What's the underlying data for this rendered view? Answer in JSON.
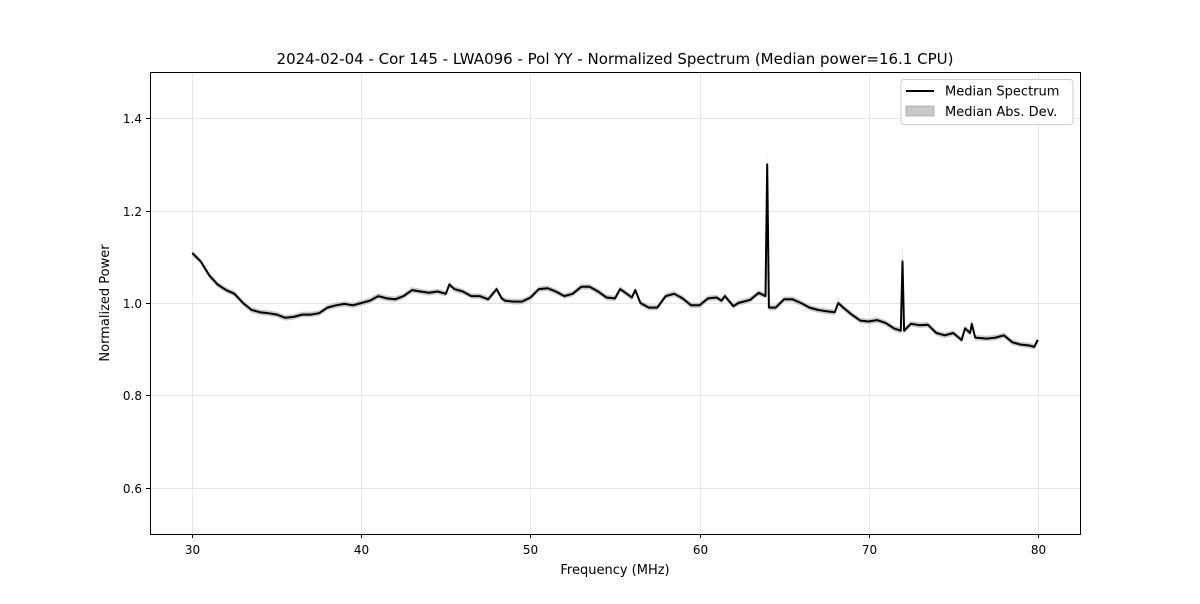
{
  "chart_data": {
    "type": "line",
    "title": "2024-02-04 - Cor 145 - LWA096 - Pol YY - Normalized Spectrum (Median power=16.1 CPU)",
    "xlabel": "Frequency (MHz)",
    "ylabel": "Normalized Power",
    "xlim": [
      27.5,
      82.5
    ],
    "ylim": [
      0.5,
      1.5
    ],
    "xticks": [
      30,
      40,
      50,
      60,
      70,
      80
    ],
    "xtick_labels": [
      "30",
      "40",
      "50",
      "60",
      "70",
      "80"
    ],
    "yticks": [
      0.6,
      0.8,
      1.0,
      1.2,
      1.4
    ],
    "ytick_labels": [
      "0.6",
      "0.8",
      "1.0",
      "1.2",
      "1.4"
    ],
    "grid": true,
    "legend": {
      "placement": "top-right",
      "entries": [
        "Median Spectrum",
        "Median Abs. Dev."
      ]
    },
    "colors": {
      "line": "#000000",
      "band": "#b0b0b0",
      "grid": "#e0e0e0"
    },
    "series": [
      {
        "name": "Median Spectrum",
        "x": [
          30,
          30.5,
          31,
          31.5,
          32,
          32.5,
          33,
          33.5,
          34,
          34.5,
          35,
          35.5,
          36,
          36.5,
          37,
          37.5,
          38,
          38.5,
          39,
          39.5,
          40,
          40.5,
          41,
          41.5,
          42,
          42.5,
          43,
          43.5,
          44,
          44.5,
          45,
          45.2,
          45.5,
          46,
          46.5,
          47,
          47.5,
          48,
          48.3,
          48.5,
          49,
          49.5,
          50,
          50.5,
          51,
          51.5,
          52,
          52.5,
          53,
          53.5,
          54,
          54.5,
          55,
          55.3,
          55.7,
          56,
          56.2,
          56.5,
          57,
          57.5,
          58,
          58.5,
          59,
          59.5,
          60,
          60.5,
          61,
          61.3,
          61.5,
          62,
          62.3,
          63,
          63.5,
          63.9,
          64.0,
          64.1,
          64.5,
          65,
          65.5,
          66,
          66.5,
          67,
          67.5,
          68,
          68.2,
          68.5,
          69,
          69.5,
          70,
          70.5,
          71,
          71.5,
          71.9,
          72.0,
          72.1,
          72.5,
          73,
          73.5,
          74,
          74.5,
          75,
          75.5,
          75.7,
          76,
          76.1,
          76.3,
          77,
          77.5,
          78,
          78.5,
          79,
          79.5,
          79.8,
          80
        ],
        "y": [
          1.108,
          1.09,
          1.06,
          1.04,
          1.028,
          1.02,
          1.0,
          0.985,
          0.98,
          0.978,
          0.975,
          0.968,
          0.97,
          0.975,
          0.975,
          0.978,
          0.99,
          0.995,
          0.998,
          0.995,
          1.0,
          1.005,
          1.015,
          1.01,
          1.008,
          1.015,
          1.028,
          1.025,
          1.022,
          1.025,
          1.02,
          1.04,
          1.03,
          1.025,
          1.015,
          1.015,
          1.008,
          1.03,
          1.01,
          1.005,
          1.003,
          1.003,
          1.012,
          1.03,
          1.032,
          1.025,
          1.015,
          1.02,
          1.035,
          1.035,
          1.025,
          1.012,
          1.01,
          1.03,
          1.02,
          1.012,
          1.028,
          1.0,
          0.99,
          0.99,
          1.015,
          1.02,
          1.01,
          0.995,
          0.995,
          1.01,
          1.012,
          1.005,
          1.015,
          0.993,
          1.0,
          1.007,
          1.022,
          1.015,
          1.3,
          0.99,
          0.99,
          1.008,
          1.008,
          1.0,
          0.99,
          0.985,
          0.982,
          0.98,
          1.0,
          0.99,
          0.975,
          0.962,
          0.96,
          0.963,
          0.957,
          0.945,
          0.94,
          1.09,
          0.94,
          0.955,
          0.952,
          0.953,
          0.935,
          0.93,
          0.935,
          0.92,
          0.945,
          0.935,
          0.955,
          0.925,
          0.923,
          0.925,
          0.93,
          0.915,
          0.91,
          0.908,
          0.905,
          0.92
        ]
      },
      {
        "name": "Median Abs. Dev.",
        "typical_half_width": 0.006,
        "peaks": [
          {
            "x": 64.0,
            "upper": 1.335
          },
          {
            "x": 72.0,
            "upper": 1.132
          }
        ]
      }
    ]
  }
}
